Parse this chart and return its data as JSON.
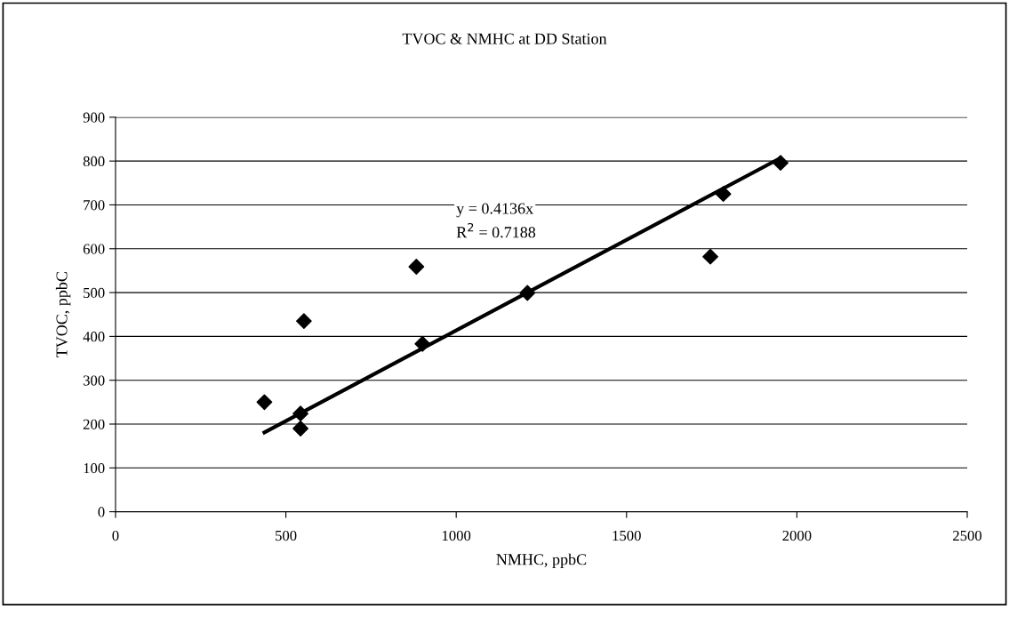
{
  "chart_data": {
    "type": "scatter",
    "title": "TVOC & NMHC at DD Station",
    "xlabel": "NMHC, ppbC",
    "ylabel": "TVOC, ppbC",
    "series": [
      {
        "color": "#000000",
        "marker": "diamond",
        "x": [
          437,
          543,
          543,
          553,
          883,
          901,
          1209,
          1746,
          1784,
          1952
        ],
        "values": [
          250,
          224,
          190,
          435,
          559,
          383,
          499,
          582,
          725,
          796
        ]
      },
      {
        "type": "line",
        "color": "#000000",
        "marker": "none",
        "line_style": "solid",
        "x": [
          437,
          1952
        ],
        "values": [
          181,
          807
        ]
      }
    ],
    "annotations": [
      "y = 0.4136x",
      "R$^{2}$ = 0.7188"
    ],
    "xlim": [
      0,
      2500
    ],
    "xticks": [
      0,
      500,
      1000,
      1500,
      2000,
      2500
    ],
    "ylim": [
      0,
      900
    ],
    "yticks": [
      0,
      100,
      200,
      300,
      400,
      500,
      600,
      700,
      800,
      900
    ],
    "grid": "y",
    "legend": false
  }
}
